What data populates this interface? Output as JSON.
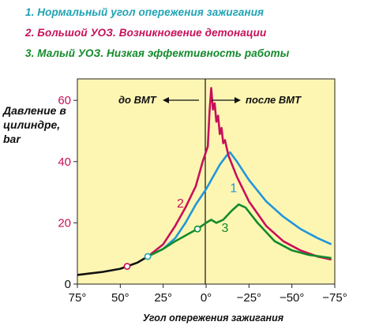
{
  "legend": [
    {
      "text": "1. Нормальный угол опережения зажигания",
      "color": "#1ea3b3"
    },
    {
      "text": "2. Большой УОЗ. Возникновение детонации",
      "color": "#c8105a"
    },
    {
      "text": "3. Малый УОЗ. Низкая эффективность работы",
      "color": "#138a2b"
    }
  ],
  "chart_data": {
    "type": "line",
    "title": "",
    "ylabel": "Давление в цилиндре, bar",
    "xlabel": "Угол опережения зажигания",
    "x_ticks": [
      "75°",
      "50°",
      "25°",
      "0°",
      "−25°",
      "−50°",
      "−75°"
    ],
    "x_tick_values": [
      75,
      50,
      25,
      0,
      -25,
      -50,
      -75
    ],
    "y_ticks": [
      "0",
      "20",
      "40",
      "60"
    ],
    "y_tick_values": [
      0,
      20,
      40,
      60
    ],
    "xlim": [
      75,
      -75
    ],
    "ylim": [
      0,
      67
    ],
    "background": "#fdf6b3",
    "annotations": {
      "before": "до ВМТ",
      "after": "после ВМТ"
    },
    "series": [
      {
        "name": "1",
        "color": "#2196d9",
        "points": [
          [
            34,
            9
          ],
          [
            25,
            11.5
          ],
          [
            18,
            15
          ],
          [
            12,
            20
          ],
          [
            6,
            26
          ],
          [
            0,
            31
          ],
          [
            -4,
            35
          ],
          [
            -8,
            39
          ],
          [
            -12,
            42
          ],
          [
            -14,
            43
          ],
          [
            -18,
            40
          ],
          [
            -25,
            34
          ],
          [
            -35,
            27
          ],
          [
            -45,
            22
          ],
          [
            -55,
            18
          ],
          [
            -65,
            15
          ],
          [
            -73,
            13
          ]
        ]
      },
      {
        "name": "2",
        "color": "#c8105a",
        "points": [
          [
            34,
            9
          ],
          [
            25,
            13
          ],
          [
            18,
            19
          ],
          [
            12,
            25
          ],
          [
            6,
            32
          ],
          [
            2,
            40
          ],
          [
            -1,
            45
          ],
          [
            -2,
            56
          ],
          [
            -3,
            64
          ],
          [
            -4,
            57
          ],
          [
            -5,
            59
          ],
          [
            -6,
            53
          ],
          [
            -7,
            55
          ],
          [
            -8,
            49
          ],
          [
            -9,
            51
          ],
          [
            -10,
            46
          ],
          [
            -11,
            47
          ],
          [
            -13,
            42
          ],
          [
            -18,
            35
          ],
          [
            -25,
            27
          ],
          [
            -35,
            19
          ],
          [
            -45,
            14
          ],
          [
            -55,
            11
          ],
          [
            -65,
            9
          ],
          [
            -73,
            8
          ]
        ]
      },
      {
        "name": "3",
        "color": "#138a2b",
        "points": [
          [
            34,
            9
          ],
          [
            25,
            11.5
          ],
          [
            18,
            14
          ],
          [
            10,
            16.5
          ],
          [
            5,
            18
          ],
          [
            0,
            20
          ],
          [
            -3,
            21
          ],
          [
            -6,
            20
          ],
          [
            -10,
            21
          ],
          [
            -15,
            24
          ],
          [
            -19,
            26
          ],
          [
            -23,
            25
          ],
          [
            -30,
            20
          ],
          [
            -40,
            14
          ],
          [
            -50,
            11
          ],
          [
            -60,
            9.5
          ],
          [
            -73,
            8.5
          ]
        ]
      },
      {
        "name": "common",
        "color": "#111111",
        "points": [
          [
            75,
            3
          ],
          [
            60,
            4
          ],
          [
            50,
            5
          ],
          [
            46,
            5.8
          ],
          [
            40,
            7
          ],
          [
            34,
            9
          ]
        ]
      }
    ],
    "markers": [
      {
        "x": 46,
        "y": 5.8,
        "color": "#c8105a"
      },
      {
        "x": 34,
        "y": 9,
        "color": "#1ea3b3"
      },
      {
        "x": 5,
        "y": 18,
        "color": "#138a2b"
      }
    ],
    "curve_labels": [
      {
        "text": "2",
        "x": 17,
        "y": 25,
        "color": "#c8105a"
      },
      {
        "text": "1",
        "x": -14,
        "y": 30,
        "color": "#2196d9"
      },
      {
        "text": "3",
        "x": -9,
        "y": 17,
        "color": "#138a2b"
      }
    ]
  }
}
